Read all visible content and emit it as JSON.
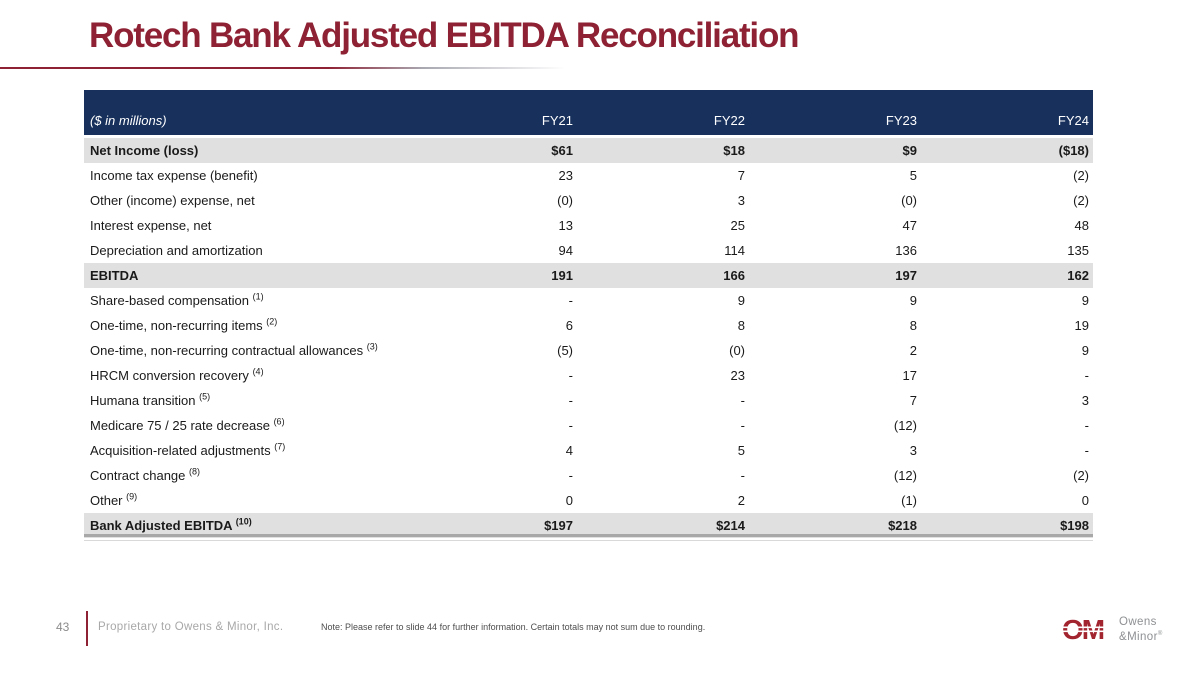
{
  "slide": {
    "title": "Rotech Bank Adjusted EBITDA Reconciliation",
    "page_number": "43",
    "footer_left": "Proprietary to Owens & Minor, Inc.",
    "footer_note": "Note: Please refer to slide 44 for further information. Certain totals may not sum due to rounding."
  },
  "logo": {
    "monogram": "OM",
    "name_line1": "Owens",
    "name_line2": "&Minor",
    "reg_mark": "®"
  },
  "colors": {
    "maroon": "#8E2133",
    "navy": "#17305C",
    "row_band": "#E0E0E0",
    "logo_red": "#A2242F"
  },
  "table": {
    "unit_label": "($ in millions)",
    "columns": [
      "FY21",
      "FY22",
      "FY23",
      "FY24"
    ],
    "rows": [
      {
        "label": "Net Income (loss)",
        "sup": "",
        "values": [
          "$61",
          "$18",
          "$9",
          "($18)"
        ],
        "style": "subtotal"
      },
      {
        "label": "Income tax expense (benefit)",
        "sup": "",
        "values": [
          "23",
          "7",
          "5",
          "(2)"
        ],
        "style": "normal"
      },
      {
        "label": "Other (income) expense, net",
        "sup": "",
        "values": [
          "(0)",
          "3",
          "(0)",
          "(2)"
        ],
        "style": "normal"
      },
      {
        "label": "Interest expense, net",
        "sup": "",
        "values": [
          "13",
          "25",
          "47",
          "48"
        ],
        "style": "normal"
      },
      {
        "label": "Depreciation and amortization",
        "sup": "",
        "values": [
          "94",
          "114",
          "136",
          "135"
        ],
        "style": "normal"
      },
      {
        "label": "EBITDA",
        "sup": "",
        "values": [
          "191",
          "166",
          "197",
          "162"
        ],
        "style": "subtotal"
      },
      {
        "label": "Share-based compensation",
        "sup": "(1)",
        "values": [
          "-",
          "9",
          "9",
          "9"
        ],
        "style": "normal"
      },
      {
        "label": "One-time, non-recurring items",
        "sup": "(2)",
        "values": [
          "6",
          "8",
          "8",
          "19"
        ],
        "style": "normal"
      },
      {
        "label": "One-time, non-recurring contractual allowances",
        "sup": "(3)",
        "values": [
          "(5)",
          "(0)",
          "2",
          "9"
        ],
        "style": "normal"
      },
      {
        "label": "HRCM conversion recovery",
        "sup": "(4)",
        "values": [
          "-",
          "23",
          "17",
          "-"
        ],
        "style": "normal"
      },
      {
        "label": "Humana transition",
        "sup": "(5)",
        "values": [
          "-",
          "-",
          "7",
          "3"
        ],
        "style": "normal"
      },
      {
        "label": "Medicare 75 / 25 rate decrease",
        "sup": "(6)",
        "values": [
          "-",
          "-",
          "(12)",
          "-"
        ],
        "style": "normal"
      },
      {
        "label": "Acquisition-related adjustments",
        "sup": "(7)",
        "values": [
          "4",
          "5",
          "3",
          "-"
        ],
        "style": "normal"
      },
      {
        "label": "Contract change",
        "sup": "(8)",
        "values": [
          "-",
          "-",
          "(12)",
          "(2)"
        ],
        "style": "normal"
      },
      {
        "label": "Other",
        "sup": "(9)",
        "values": [
          "0",
          "2",
          "(1)",
          "0"
        ],
        "style": "normal"
      },
      {
        "label": "Bank Adjusted EBITDA",
        "sup": "(10)",
        "values": [
          "$197",
          "$214",
          "$218",
          "$198"
        ],
        "style": "total"
      }
    ]
  }
}
